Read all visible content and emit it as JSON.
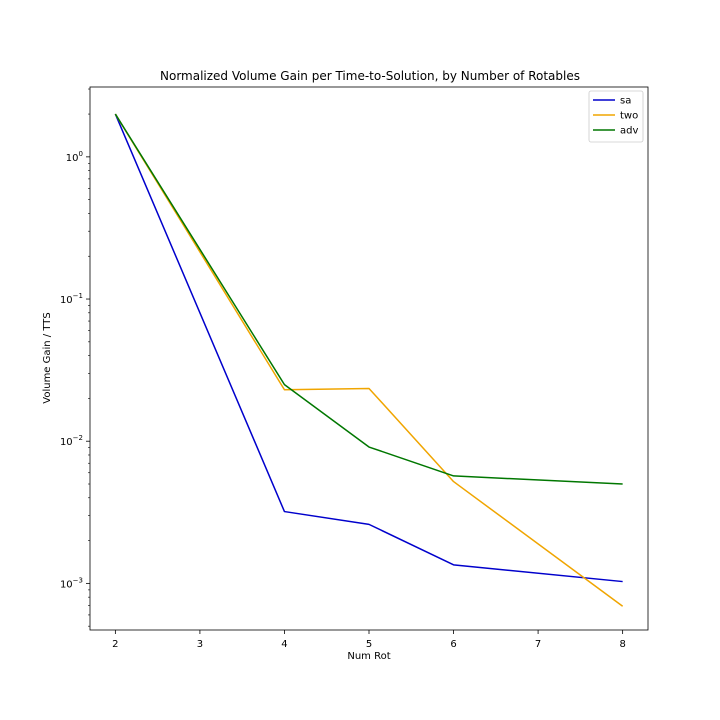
{
  "chart_data": {
    "type": "line",
    "title": "Normalized Volume Gain per Time-to-Solution, by Number of Rotables",
    "xlabel": "Num Rot",
    "ylabel": "Volume Gain / TTS",
    "yscale": "log",
    "xlim": [
      1.7,
      8.3
    ],
    "ylim": [
      0.00047,
      3.1
    ],
    "x_ticks": [
      2,
      3,
      4,
      5,
      6,
      7,
      8
    ],
    "y_ticks": [
      {
        "value": 1,
        "base": "10",
        "exp": "0"
      },
      {
        "value": 0.1,
        "base": "10",
        "exp": "−1"
      },
      {
        "value": 0.01,
        "base": "10",
        "exp": "−2"
      },
      {
        "value": 0.001,
        "base": "10",
        "exp": "−3"
      }
    ],
    "grid": false,
    "legend_position": "upper right",
    "x": [
      2,
      4,
      5,
      6,
      8
    ],
    "series": [
      {
        "name": "sa",
        "color": "#0000cc",
        "values": [
          2.0,
          0.0032,
          0.0026,
          0.00135,
          0.00103
        ]
      },
      {
        "name": "two",
        "color": "#f0a500",
        "values": [
          2.0,
          0.023,
          0.0235,
          0.0052,
          0.00069
        ]
      },
      {
        "name": "adv",
        "color": "#007700",
        "values": [
          2.0,
          0.025,
          0.0091,
          0.0057,
          0.005
        ]
      }
    ]
  }
}
